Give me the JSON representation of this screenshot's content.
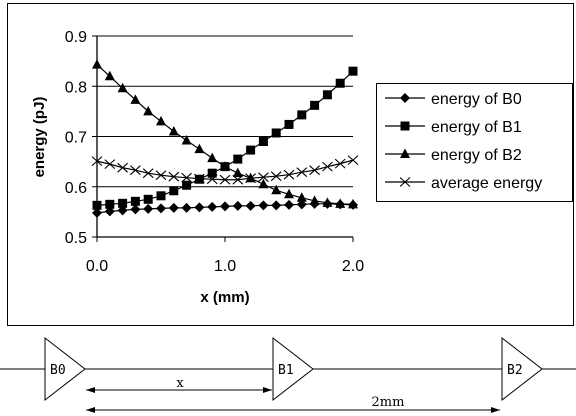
{
  "chart_data": {
    "type": "line",
    "title": "",
    "xlabel": "x (mm)",
    "ylabel": "energy (pJ)",
    "xlim": [
      0.0,
      2.0
    ],
    "ylim": [
      0.5,
      0.9
    ],
    "xticks": [
      "0.0",
      "1.0",
      "2.0"
    ],
    "yticks": [
      "0.5",
      "0.6",
      "0.7",
      "0.8",
      "0.9"
    ],
    "grid": "horizontal",
    "legend_position": "right",
    "x": [
      0.0,
      0.1,
      0.2,
      0.3,
      0.4,
      0.5,
      0.6,
      0.7,
      0.8,
      0.9,
      1.0,
      1.1,
      1.2,
      1.3,
      1.4,
      1.5,
      1.6,
      1.7,
      1.8,
      1.9,
      2.0
    ],
    "series": [
      {
        "name": "energy of B0",
        "marker": "diamond",
        "values": [
          0.548,
          0.551,
          0.553,
          0.555,
          0.556,
          0.557,
          0.558,
          0.558,
          0.559,
          0.56,
          0.561,
          0.562,
          0.562,
          0.563,
          0.563,
          0.564,
          0.565,
          0.566,
          0.566,
          0.565,
          0.564
        ]
      },
      {
        "name": "energy of B1",
        "marker": "square",
        "values": [
          0.563,
          0.565,
          0.567,
          0.571,
          0.575,
          0.582,
          0.592,
          0.603,
          0.615,
          0.627,
          0.64,
          0.655,
          0.673,
          0.69,
          0.707,
          0.724,
          0.743,
          0.762,
          0.783,
          0.806,
          0.83
        ]
      },
      {
        "name": "energy of B2",
        "marker": "triangle",
        "values": [
          0.843,
          0.82,
          0.796,
          0.773,
          0.75,
          0.73,
          0.71,
          0.692,
          0.675,
          0.657,
          0.64,
          0.627,
          0.617,
          0.605,
          0.593,
          0.585,
          0.578,
          0.572,
          0.568,
          0.566,
          0.565
        ]
      },
      {
        "name": "average energy",
        "marker": "x",
        "values": [
          0.651,
          0.645,
          0.638,
          0.633,
          0.627,
          0.623,
          0.62,
          0.618,
          0.616,
          0.615,
          0.614,
          0.614,
          0.617,
          0.619,
          0.621,
          0.624,
          0.629,
          0.633,
          0.64,
          0.646,
          0.653
        ]
      }
    ]
  },
  "diagram": {
    "buffers": [
      "B0",
      "B1",
      "B2"
    ],
    "x_label": "x",
    "span_label": "2mm"
  }
}
